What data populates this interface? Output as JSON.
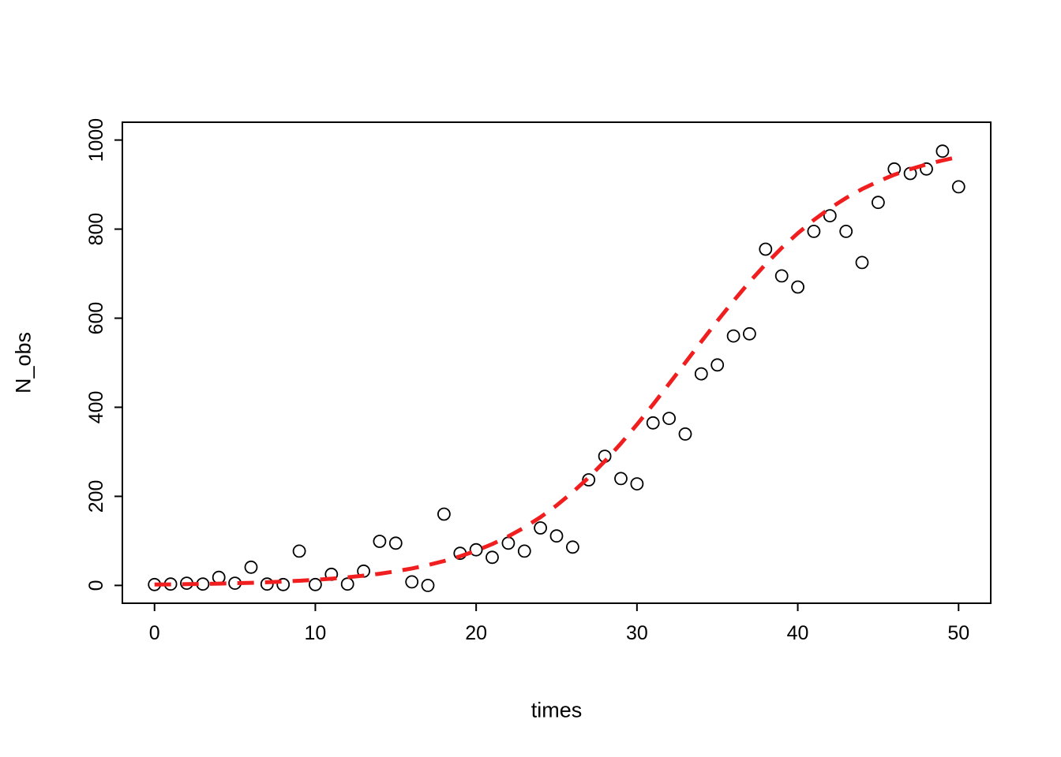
{
  "chart_data": {
    "type": "scatter",
    "title": "",
    "xlabel": "times",
    "ylabel": "N_obs",
    "xlim": [
      0,
      50
    ],
    "ylim": [
      0,
      1000
    ],
    "x_ticks": [
      0,
      10,
      20,
      30,
      40,
      50
    ],
    "y_ticks": [
      0,
      200,
      400,
      600,
      800,
      1000
    ],
    "grid": false,
    "legend_position": "none",
    "points": {
      "shape": "open-circle",
      "color": "#000000",
      "x": [
        0,
        1,
        2,
        3,
        4,
        5,
        6,
        7,
        8,
        9,
        10,
        11,
        12,
        13,
        14,
        15,
        16,
        17,
        18,
        19,
        20,
        21,
        22,
        23,
        24,
        25,
        26,
        27,
        28,
        29,
        30,
        31,
        32,
        33,
        34,
        35,
        36,
        37,
        38,
        39,
        40,
        41,
        42,
        43,
        44,
        45,
        46,
        47,
        48,
        49,
        50
      ],
      "y": [
        2,
        3,
        5,
        3,
        18,
        5,
        41,
        3,
        2,
        77,
        2,
        25,
        3,
        32,
        99,
        95,
        8,
        0,
        160,
        72,
        80,
        63,
        95,
        77,
        129,
        111,
        86,
        237,
        290,
        240,
        228,
        365,
        375,
        340,
        475,
        495,
        560,
        565,
        755,
        695,
        670,
        795,
        830,
        795,
        725,
        860,
        935,
        925,
        935,
        975,
        895
      ]
    },
    "fit_curve": {
      "name": "logistic-fit",
      "style": "dashed",
      "color": "#F01E1E",
      "line_width": 5,
      "x": [
        0,
        1,
        2,
        3,
        4,
        5,
        6,
        7,
        8,
        9,
        10,
        11,
        12,
        13,
        14,
        15,
        16,
        17,
        18,
        19,
        20,
        21,
        22,
        23,
        24,
        25,
        26,
        27,
        28,
        29,
        30,
        31,
        32,
        33,
        34,
        35,
        36,
        37,
        38,
        39,
        40,
        41,
        42,
        43,
        44,
        45,
        46,
        47,
        48,
        49,
        50
      ],
      "y": [
        1.9,
        2.3,
        2.8,
        3.3,
        4.0,
        4.9,
        5.9,
        7.1,
        8.6,
        10.4,
        12.5,
        15.1,
        18.2,
        21.9,
        26.3,
        31.7,
        38.0,
        45.7,
        54.7,
        65.4,
        78.0,
        92.8,
        110.1,
        130.1,
        153.2,
        179.5,
        209.2,
        242.3,
        278.9,
        318.7,
        361.3,
        406.2,
        452.7,
        500.0,
        547.3,
        593.8,
        638.7,
        681.3,
        721.1,
        757.7,
        790.8,
        820.5,
        846.8,
        869.9,
        889.9,
        907.2,
        922.0,
        934.6,
        945.3,
        954.3,
        962.0
      ]
    }
  }
}
